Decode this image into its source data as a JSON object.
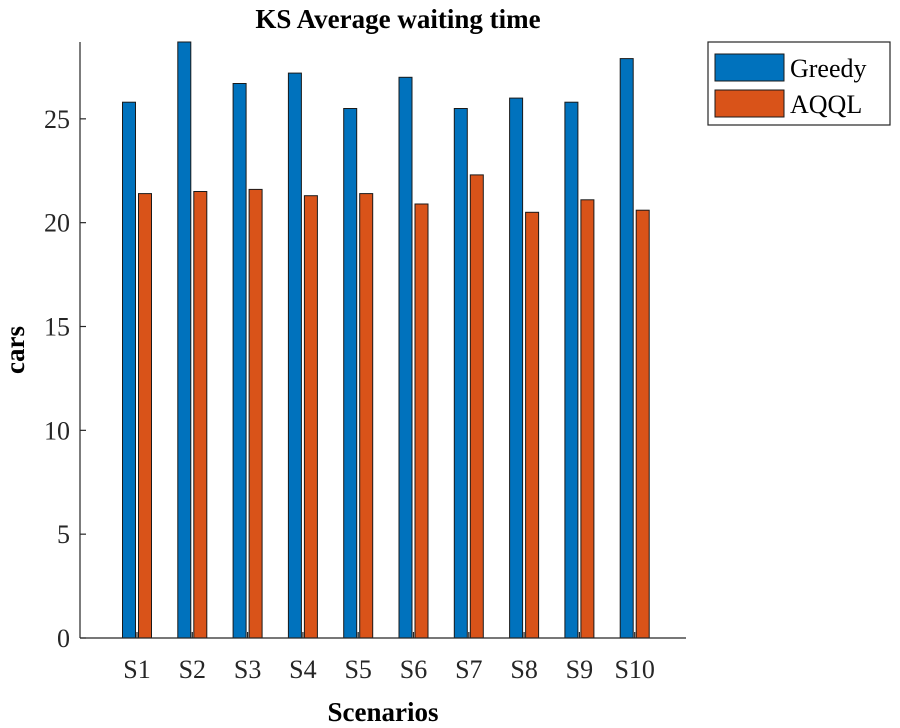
{
  "chart_data": {
    "type": "bar",
    "title": "KS Average waiting time",
    "xlabel": "Scenarios",
    "ylabel": "cars",
    "categories": [
      "S1",
      "S2",
      "S3",
      "S4",
      "S5",
      "S6",
      "S7",
      "S8",
      "S9",
      "S10"
    ],
    "series": [
      {
        "name": "Greedy",
        "color": "#0072BD",
        "values": [
          25.8,
          28.7,
          26.7,
          27.2,
          25.5,
          27.0,
          25.5,
          26.0,
          25.8,
          27.9
        ]
      },
      {
        "name": "AQQL",
        "color": "#D95319",
        "values": [
          21.4,
          21.5,
          21.6,
          21.3,
          21.4,
          20.9,
          22.3,
          20.5,
          21.1,
          20.6
        ]
      }
    ],
    "ylim": [
      0,
      28.7
    ],
    "yticks": [
      0,
      5,
      10,
      15,
      20,
      25
    ],
    "grid": false,
    "legend_position": "outside-top-right"
  }
}
